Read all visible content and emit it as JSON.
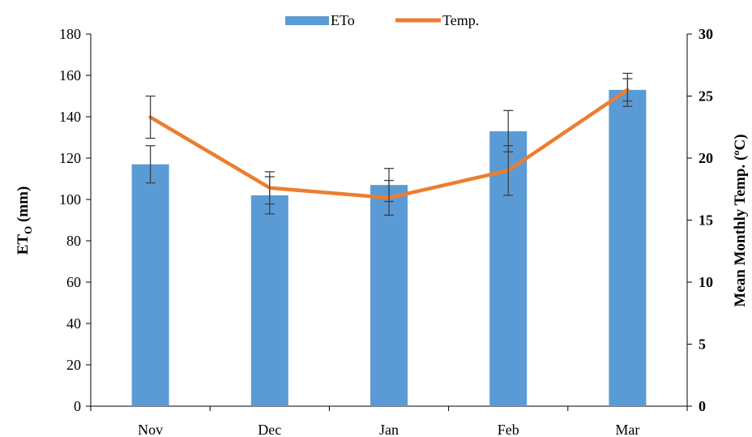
{
  "chart_data": {
    "type": "bar",
    "categories": [
      "Nov",
      "Dec",
      "Jan",
      "Feb",
      "Mar"
    ],
    "series": [
      {
        "name": "ETo",
        "type": "bar",
        "axis": "left",
        "values": [
          117,
          102,
          107,
          133,
          153
        ],
        "error": [
          9,
          9,
          8,
          10,
          8
        ]
      },
      {
        "name": "Temp.",
        "type": "line",
        "axis": "right",
        "values": [
          23.3,
          17.6,
          16.8,
          19,
          25.5
        ],
        "error": [
          1.7,
          1.3,
          1.4,
          2.0,
          0.9
        ]
      }
    ],
    "ylabel_main": "ET",
    "ylabel_sub": "O",
    "ylabel_unit": " (mm)",
    "y2label": "Mean Monthly Temp. (ºC)",
    "xlabel": "",
    "ylim": [
      0,
      180
    ],
    "y2lim": [
      0,
      30
    ],
    "yticks": [
      "0",
      "20",
      "40",
      "60",
      "80",
      "100",
      "120",
      "140",
      "160",
      "180"
    ],
    "y2ticks": [
      "0",
      "5",
      "10",
      "15",
      "20",
      "25",
      "30"
    ],
    "legend_position": "top-center",
    "grid": false,
    "colors": {
      "bar": "#5b9bd5",
      "line": "#ed7d31",
      "error": "#404040",
      "axis": "#000000"
    }
  }
}
